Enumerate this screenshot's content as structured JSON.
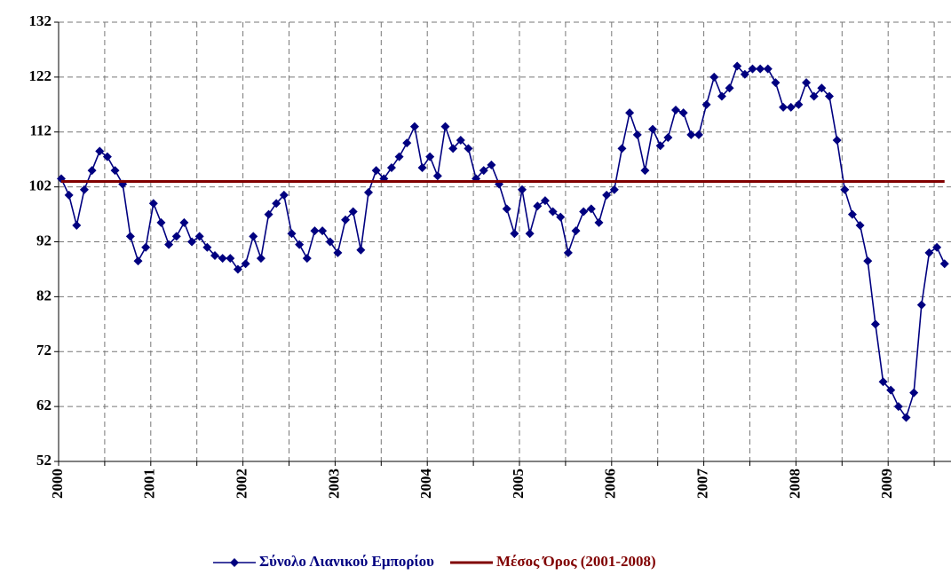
{
  "chart_data": {
    "type": "line",
    "categories": [
      "2000",
      null,
      null,
      null,
      null,
      null,
      null,
      null,
      null,
      null,
      null,
      null,
      "2001",
      null,
      null,
      null,
      null,
      null,
      null,
      null,
      null,
      null,
      null,
      null,
      "2002",
      null,
      null,
      null,
      null,
      null,
      null,
      null,
      null,
      null,
      null,
      null,
      "2003",
      null,
      null,
      null,
      null,
      null,
      null,
      null,
      null,
      null,
      null,
      null,
      "2004",
      null,
      null,
      null,
      null,
      null,
      null,
      null,
      null,
      null,
      null,
      null,
      "2005",
      null,
      null,
      null,
      null,
      null,
      null,
      null,
      null,
      null,
      null,
      null,
      "2006",
      null,
      null,
      null,
      null,
      null,
      null,
      null,
      null,
      null,
      null,
      null,
      "2007",
      null,
      null,
      null,
      null,
      null,
      null,
      null,
      null,
      null,
      null,
      null,
      "2008",
      null,
      null,
      null,
      null,
      null,
      null,
      null,
      null,
      null,
      null,
      null,
      "2009",
      null,
      null,
      null,
      null,
      null,
      null,
      null
    ],
    "series": [
      {
        "name": "Σύνολο Λιανικού Εμπορίου",
        "color": "#000080",
        "marker": "diamond",
        "values": [
          103.5,
          100.5,
          95,
          101.5,
          105,
          108.5,
          107.5,
          105,
          102.5,
          93,
          88.5,
          91,
          99,
          95.5,
          91.5,
          93,
          95.5,
          92,
          93,
          91,
          89.5,
          89,
          89,
          87,
          88,
          93,
          89,
          97,
          99,
          100.5,
          93.5,
          91.5,
          89,
          94,
          94,
          92,
          90,
          96,
          97.5,
          90.5,
          101,
          105,
          103.5,
          105.5,
          107.5,
          110,
          113,
          105.5,
          107.5,
          104,
          113,
          109,
          110.5,
          109,
          103.5,
          105,
          106,
          102.5,
          98,
          93.5,
          101.5,
          93.5,
          98.5,
          99.5,
          97.5,
          96.5,
          90,
          94,
          97.5,
          98,
          95.5,
          100.5,
          101.5,
          109,
          115.5,
          111.5,
          105,
          112.5,
          109.5,
          111,
          116,
          115.5,
          111.5,
          111.5,
          117,
          122,
          118.5,
          120,
          124,
          122.5,
          123.5,
          123.5,
          123.5,
          121,
          116.5,
          116.5,
          117,
          121,
          118.5,
          120,
          118.5,
          110.5,
          101.5,
          97,
          95,
          88.5,
          77,
          66.5,
          65,
          62,
          60,
          64.5,
          80.5,
          90,
          91,
          88
        ]
      },
      {
        "name": "Μέσος Όρος (2001-2008)",
        "color": "#800000",
        "marker": "none",
        "values": [
          103,
          103,
          103,
          103,
          103,
          103,
          103,
          103,
          103,
          103,
          103,
          103,
          103,
          103,
          103,
          103,
          103,
          103,
          103,
          103,
          103,
          103,
          103,
          103,
          103,
          103,
          103,
          103,
          103,
          103,
          103,
          103,
          103,
          103,
          103,
          103,
          103,
          103,
          103,
          103,
          103,
          103,
          103,
          103,
          103,
          103,
          103,
          103,
          103,
          103,
          103,
          103,
          103,
          103,
          103,
          103,
          103,
          103,
          103,
          103,
          103,
          103,
          103,
          103,
          103,
          103,
          103,
          103,
          103,
          103,
          103,
          103,
          103,
          103,
          103,
          103,
          103,
          103,
          103,
          103,
          103,
          103,
          103,
          103,
          103,
          103,
          103,
          103,
          103,
          103,
          103,
          103,
          103,
          103,
          103,
          103,
          103,
          103,
          103,
          103,
          103,
          103,
          103,
          103,
          103,
          103,
          103,
          103,
          103,
          103,
          103,
          103,
          103,
          103,
          103,
          103
        ]
      }
    ],
    "ylim": [
      52,
      132
    ],
    "yticks": [
      52,
      62,
      72,
      82,
      92,
      102,
      112,
      122,
      132
    ],
    "grid": true,
    "legend": "bottom"
  }
}
